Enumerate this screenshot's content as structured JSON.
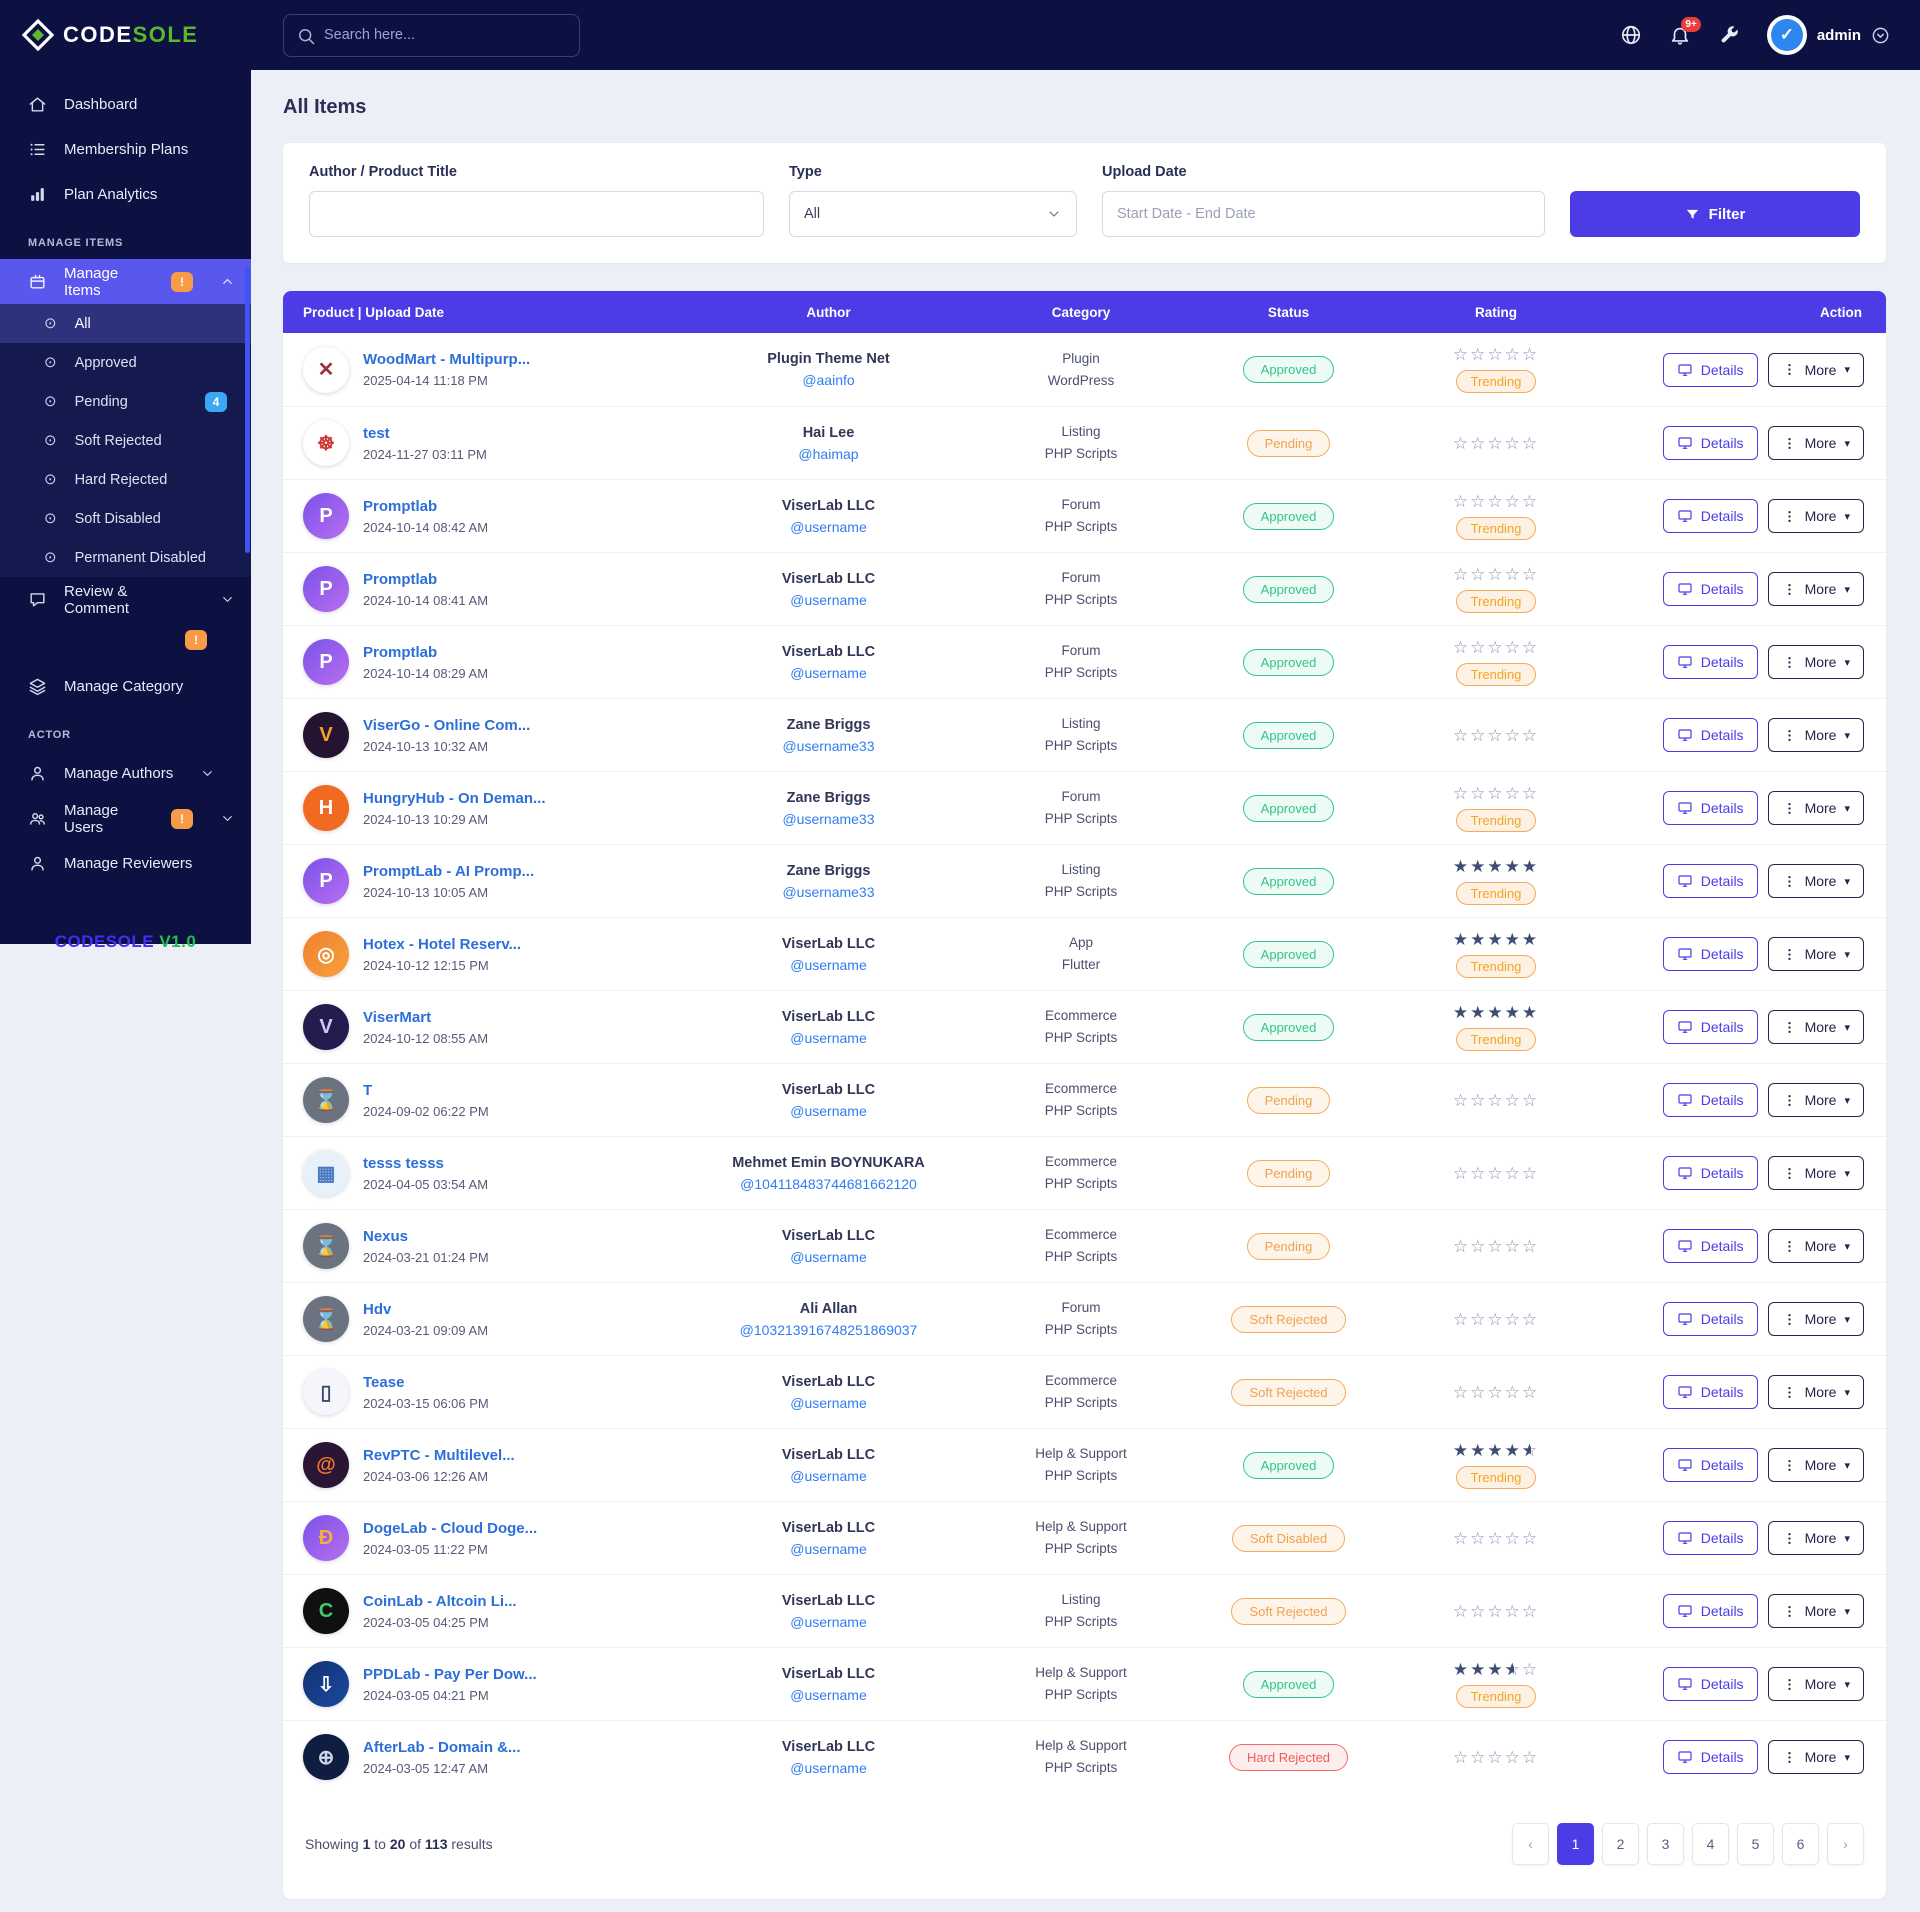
{
  "brand": {
    "logo_text_1": "CODE",
    "logo_text_2": "SOLE",
    "version_name": "CODESOLE",
    "version_number": "V1.0"
  },
  "header": {
    "search_placeholder": "Search here...",
    "notification_count": "9+",
    "username": "admin"
  },
  "sidebar": {
    "sections": [
      {
        "type": "link",
        "label": "Dashboard",
        "icon": "home-icon"
      },
      {
        "type": "link",
        "label": "Membership Plans",
        "icon": "list-icon"
      },
      {
        "type": "link",
        "label": "Plan Analytics",
        "icon": "chart-icon"
      },
      {
        "type": "heading",
        "label": "MANAGE ITEMS"
      },
      {
        "type": "link",
        "label": "Manage Items",
        "icon": "box-icon",
        "badge": "!",
        "badge_color": "orange",
        "chevron": "up",
        "active": true
      },
      {
        "type": "sub",
        "label": "All",
        "active": true
      },
      {
        "type": "sub",
        "label": "Approved"
      },
      {
        "type": "sub",
        "label": "Pending",
        "badge": "4",
        "badge_color": "blue"
      },
      {
        "type": "sub",
        "label": "Soft Rejected"
      },
      {
        "type": "sub",
        "label": "Hard Rejected"
      },
      {
        "type": "sub",
        "label": "Soft Disabled"
      },
      {
        "type": "sub",
        "label": "Permanent Disabled"
      },
      {
        "type": "link",
        "label": "Review & Comment",
        "icon": "chat-icon",
        "badge": "!",
        "badge_color": "orange",
        "chevron": "down",
        "badge_below": true
      },
      {
        "type": "link",
        "label": "Manage Category",
        "icon": "layers-icon"
      },
      {
        "type": "heading",
        "label": "ACTOR"
      },
      {
        "type": "link",
        "label": "Manage Authors",
        "icon": "user-icon",
        "chevron": "down"
      },
      {
        "type": "link",
        "label": "Manage Users",
        "icon": "users-icon",
        "badge": "!",
        "badge_color": "orange",
        "chevron": "down"
      },
      {
        "type": "link",
        "label": "Manage Reviewers",
        "icon": "user-icon"
      }
    ]
  },
  "page": {
    "title": "All Items"
  },
  "filters": {
    "author_label": "Author / Product Title",
    "author_value": "",
    "type_label": "Type",
    "type_value": "All",
    "date_label": "Upload Date",
    "date_placeholder": "Start Date - End Date",
    "button_label": "Filter"
  },
  "table": {
    "columns": [
      "Product | Upload Date",
      "Author",
      "Category",
      "Status",
      "Rating",
      "Action"
    ],
    "details_label": "Details",
    "more_label": "More",
    "trending_label": "Trending",
    "rows": [
      {
        "product": "WoodMart - Multipurp...",
        "date": "2025-04-14 11:18 PM",
        "author": "Plugin Theme Net",
        "handle": "@aainfo",
        "category": "Plugin",
        "subcategory": "WordPress",
        "status": "Approved",
        "status_tone": "green",
        "rating": 0,
        "trending": true,
        "icon": {
          "name": "woodmart-logo",
          "glyph": "✕",
          "bg": "#ffffff",
          "bg2": "",
          "fg": "#9e3038"
        }
      },
      {
        "product": "test",
        "date": "2024-11-27 03:11 PM",
        "author": "Hai Lee",
        "handle": "@haimap",
        "category": "Listing",
        "subcategory": "PHP Scripts",
        "status": "Pending",
        "status_tone": "orange",
        "rating": 0,
        "trending": false,
        "icon": {
          "name": "lifebuoy-logo",
          "glyph": "☸",
          "bg": "#ffffff",
          "bg2": "",
          "fg": "#cc3b36"
        }
      },
      {
        "product": "Promptlab",
        "date": "2024-10-14 08:42 AM",
        "author": "ViserLab LLC",
        "handle": "@username",
        "category": "Forum",
        "subcategory": "PHP Scripts",
        "status": "Approved",
        "status_tone": "green",
        "rating": 0,
        "trending": true,
        "icon": {
          "name": "promptlab-logo",
          "glyph": "P",
          "bg": "#7b52e8",
          "bg2": "#b76ef0",
          "fg": "#ffffff"
        }
      },
      {
        "product": "Promptlab",
        "date": "2024-10-14 08:41 AM",
        "author": "ViserLab LLC",
        "handle": "@username",
        "category": "Forum",
        "subcategory": "PHP Scripts",
        "status": "Approved",
        "status_tone": "green",
        "rating": 0,
        "trending": true,
        "icon": {
          "name": "promptlab-logo",
          "glyph": "P",
          "bg": "#7b52e8",
          "bg2": "#b76ef0",
          "fg": "#ffffff"
        }
      },
      {
        "product": "Promptlab",
        "date": "2024-10-14 08:29 AM",
        "author": "ViserLab LLC",
        "handle": "@username",
        "category": "Forum",
        "subcategory": "PHP Scripts",
        "status": "Approved",
        "status_tone": "green",
        "rating": 0,
        "trending": true,
        "icon": {
          "name": "promptlab-logo",
          "glyph": "P",
          "bg": "#7b52e8",
          "bg2": "#b76ef0",
          "fg": "#ffffff"
        }
      },
      {
        "product": "ViserGo - Online Com...",
        "date": "2024-10-13 10:32 AM",
        "author": "Zane Briggs",
        "handle": "@username33",
        "category": "Listing",
        "subcategory": "PHP Scripts",
        "status": "Approved",
        "status_tone": "green",
        "rating": 0,
        "trending": false,
        "icon": {
          "name": "visergo-logo",
          "glyph": "V",
          "bg": "#241430",
          "bg2": "",
          "fg": "#f0a030"
        }
      },
      {
        "product": "HungryHub - On Deman...",
        "date": "2024-10-13 10:29 AM",
        "author": "Zane Briggs",
        "handle": "@username33",
        "category": "Forum",
        "subcategory": "PHP Scripts",
        "status": "Approved",
        "status_tone": "green",
        "rating": 0,
        "trending": true,
        "icon": {
          "name": "hungryhub-logo",
          "glyph": "H",
          "bg": "#f26a22",
          "bg2": "",
          "fg": "#ffffff"
        }
      },
      {
        "product": "PromptLab - AI Promp...",
        "date": "2024-10-13 10:05 AM",
        "author": "Zane Briggs",
        "handle": "@username33",
        "category": "Listing",
        "subcategory": "PHP Scripts",
        "status": "Approved",
        "status_tone": "green",
        "rating": 5,
        "trending": true,
        "icon": {
          "name": "promptlab-logo",
          "glyph": "P",
          "bg": "#7b52e8",
          "bg2": "#b76ef0",
          "fg": "#ffffff"
        }
      },
      {
        "product": "Hotex - Hotel Reserv...",
        "date": "2024-10-12 12:15 PM",
        "author": "ViserLab LLC",
        "handle": "@username",
        "category": "App",
        "subcategory": "Flutter",
        "status": "Approved",
        "status_tone": "green",
        "rating": 5,
        "trending": true,
        "icon": {
          "name": "hotex-logo",
          "glyph": "◎",
          "bg": "#f0802f",
          "bg2": "#f8a03c",
          "fg": "#ffffff"
        }
      },
      {
        "product": "ViserMart",
        "date": "2024-10-12 08:55 AM",
        "author": "ViserLab LLC",
        "handle": "@username",
        "category": "Ecommerce",
        "subcategory": "PHP Scripts",
        "status": "Approved",
        "status_tone": "green",
        "rating": 5,
        "trending": true,
        "icon": {
          "name": "visermart-logo",
          "glyph": "V",
          "bg": "#241c4e",
          "bg2": "",
          "fg": "#cfc8ff"
        }
      },
      {
        "product": "T",
        "date": "2024-09-02 06:22 PM",
        "author": "ViserLab LLC",
        "handle": "@username",
        "category": "Ecommerce",
        "subcategory": "PHP Scripts",
        "status": "Pending",
        "status_tone": "orange",
        "rating": 0,
        "trending": false,
        "icon": {
          "name": "placeholder-image",
          "glyph": "⌛",
          "bg": "#6b7280",
          "bg2": "",
          "fg": "#e5e7ef"
        }
      },
      {
        "product": "tesss tesss",
        "date": "2024-04-05 03:54 AM",
        "author": "Mehmet Emin BOYNUKARA",
        "handle": "@104118483744681662120",
        "category": "Ecommerce",
        "subcategory": "PHP Scripts",
        "status": "Pending",
        "status_tone": "orange",
        "rating": 0,
        "trending": false,
        "icon": {
          "name": "thumbnail-image",
          "glyph": "▦",
          "bg": "#e8f0fa",
          "bg2": "",
          "fg": "#4a78c2"
        }
      },
      {
        "product": "Nexus",
        "date": "2024-03-21 01:24 PM",
        "author": "ViserLab LLC",
        "handle": "@username",
        "category": "Ecommerce",
        "subcategory": "PHP Scripts",
        "status": "Pending",
        "status_tone": "orange",
        "rating": 0,
        "trending": false,
        "icon": {
          "name": "placeholder-image",
          "glyph": "⌛",
          "bg": "#6b7280",
          "bg2": "",
          "fg": "#e5e7ef"
        }
      },
      {
        "product": "Hdv",
        "date": "2024-03-21 09:09 AM",
        "author": "Ali Allan",
        "handle": "@103213916748251869037",
        "category": "Forum",
        "subcategory": "PHP Scripts",
        "status": "Soft Rejected",
        "status_tone": "orange",
        "rating": 0,
        "trending": false,
        "icon": {
          "name": "placeholder-image",
          "glyph": "⌛",
          "bg": "#6b7280",
          "bg2": "",
          "fg": "#e5e7ef"
        }
      },
      {
        "product": "Tease",
        "date": "2024-03-15 06:06 PM",
        "author": "ViserLab LLC",
        "handle": "@username",
        "category": "Ecommerce",
        "subcategory": "PHP Scripts",
        "status": "Soft Rejected",
        "status_tone": "orange",
        "rating": 0,
        "trending": false,
        "icon": {
          "name": "tease-logo",
          "glyph": "▯",
          "bg": "#f4f6fb",
          "bg2": "",
          "fg": "#3a4a6b"
        }
      },
      {
        "product": "RevPTC - Multilevel...",
        "date": "2024-03-06 12:26 AM",
        "author": "ViserLab LLC",
        "handle": "@username",
        "category": "Help & Support",
        "subcategory": "PHP Scripts",
        "status": "Approved",
        "status_tone": "green",
        "rating": 4.5,
        "trending": true,
        "icon": {
          "name": "revptc-logo",
          "glyph": "@",
          "bg": "#2a1535",
          "bg2": "",
          "fg": "#f07a2e"
        }
      },
      {
        "product": "DogeLab - Cloud Doge...",
        "date": "2024-03-05 11:22 PM",
        "author": "ViserLab LLC",
        "handle": "@username",
        "category": "Help & Support",
        "subcategory": "PHP Scripts",
        "status": "Soft Disabled",
        "status_tone": "orange",
        "rating": 0,
        "trending": false,
        "icon": {
          "name": "dogelab-logo",
          "glyph": "Ð",
          "bg": "#7b52e8",
          "bg2": "#b76ef0",
          "fg": "#f5b03a"
        }
      },
      {
        "product": "CoinLab - Altcoin Li...",
        "date": "2024-03-05 04:25 PM",
        "author": "ViserLab LLC",
        "handle": "@username",
        "category": "Listing",
        "subcategory": "PHP Scripts",
        "status": "Soft Rejected",
        "status_tone": "orange",
        "rating": 0,
        "trending": false,
        "icon": {
          "name": "coinlab-logo",
          "glyph": "C",
          "bg": "#101010",
          "bg2": "",
          "fg": "#43c96e"
        }
      },
      {
        "product": "PPDLab - Pay Per Dow...",
        "date": "2024-03-05 04:21 PM",
        "author": "ViserLab LLC",
        "handle": "@username",
        "category": "Help & Support",
        "subcategory": "PHP Scripts",
        "status": "Approved",
        "status_tone": "green",
        "rating": 3.5,
        "trending": true,
        "icon": {
          "name": "ppdlab-logo",
          "glyph": "⇩",
          "bg": "#123070",
          "bg2": "#1b4aa0",
          "fg": "#ffffff"
        }
      },
      {
        "product": "AfterLab - Domain &...",
        "date": "2024-03-05 12:47 AM",
        "author": "ViserLab LLC",
        "handle": "@username",
        "category": "Help & Support",
        "subcategory": "PHP Scripts",
        "status": "Hard Rejected",
        "status_tone": "red",
        "rating": 0,
        "trending": false,
        "icon": {
          "name": "afterlab-logo",
          "glyph": "⊕",
          "bg": "#0f1d40",
          "bg2": "",
          "fg": "#cdd6ea"
        }
      }
    ]
  },
  "pagination": {
    "summary_prefix": "Showing",
    "from": "1",
    "mid": "to",
    "to": "20",
    "of_word": "of",
    "total": "113",
    "suffix": "results",
    "prev": "‹",
    "next": "›",
    "pages": [
      "1",
      "2",
      "3",
      "4",
      "5",
      "6"
    ],
    "active_page": "1"
  },
  "colors": {
    "accent_indigo": "#4b3ce6",
    "sidebar_active": "#5a57ee",
    "status_approved": "#34c38f",
    "status_pending": "#f0a24f",
    "status_rejected": "#f15b5b",
    "trending_orange": "#f5a623",
    "brand_green": "#5cb82a"
  }
}
